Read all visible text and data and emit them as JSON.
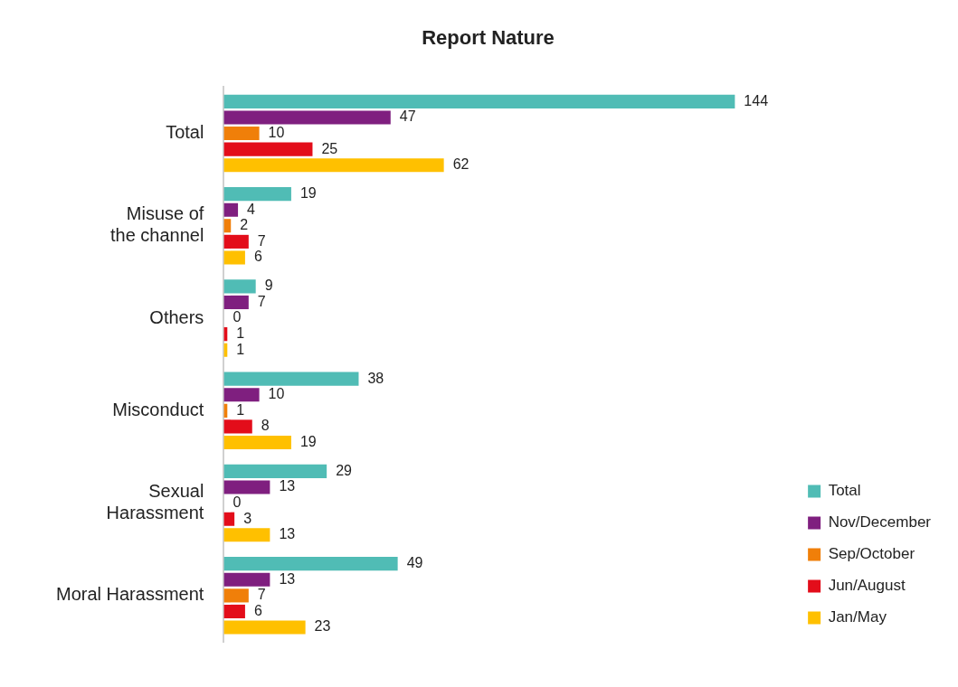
{
  "chart_data": {
    "type": "bar",
    "orientation": "horizontal",
    "title": "Report Nature",
    "categories": [
      "Total",
      "Misuse of\nthe channel",
      "Others",
      "Misconduct",
      "Sexual\nHarassment",
      "Moral Harassment"
    ],
    "series": [
      {
        "name": "Total",
        "color": "#50bcb5",
        "values": [
          144,
          19,
          9,
          38,
          29,
          49
        ]
      },
      {
        "name": "Nov/December",
        "color": "#7f1f7f",
        "values": [
          47,
          4,
          7,
          10,
          13,
          13
        ]
      },
      {
        "name": "Sep/October",
        "color": "#f07f09",
        "values": [
          10,
          2,
          0,
          1,
          0,
          7
        ]
      },
      {
        "name": "Jun/August",
        "color": "#e30d1a",
        "values": [
          25,
          7,
          1,
          8,
          3,
          6
        ]
      },
      {
        "name": "Jan/May",
        "color": "#ffc000",
        "values": [
          62,
          6,
          1,
          19,
          13,
          23
        ]
      }
    ],
    "data_labels": true,
    "legend": "bottom right",
    "grid": false,
    "tick_labels": "y"
  }
}
